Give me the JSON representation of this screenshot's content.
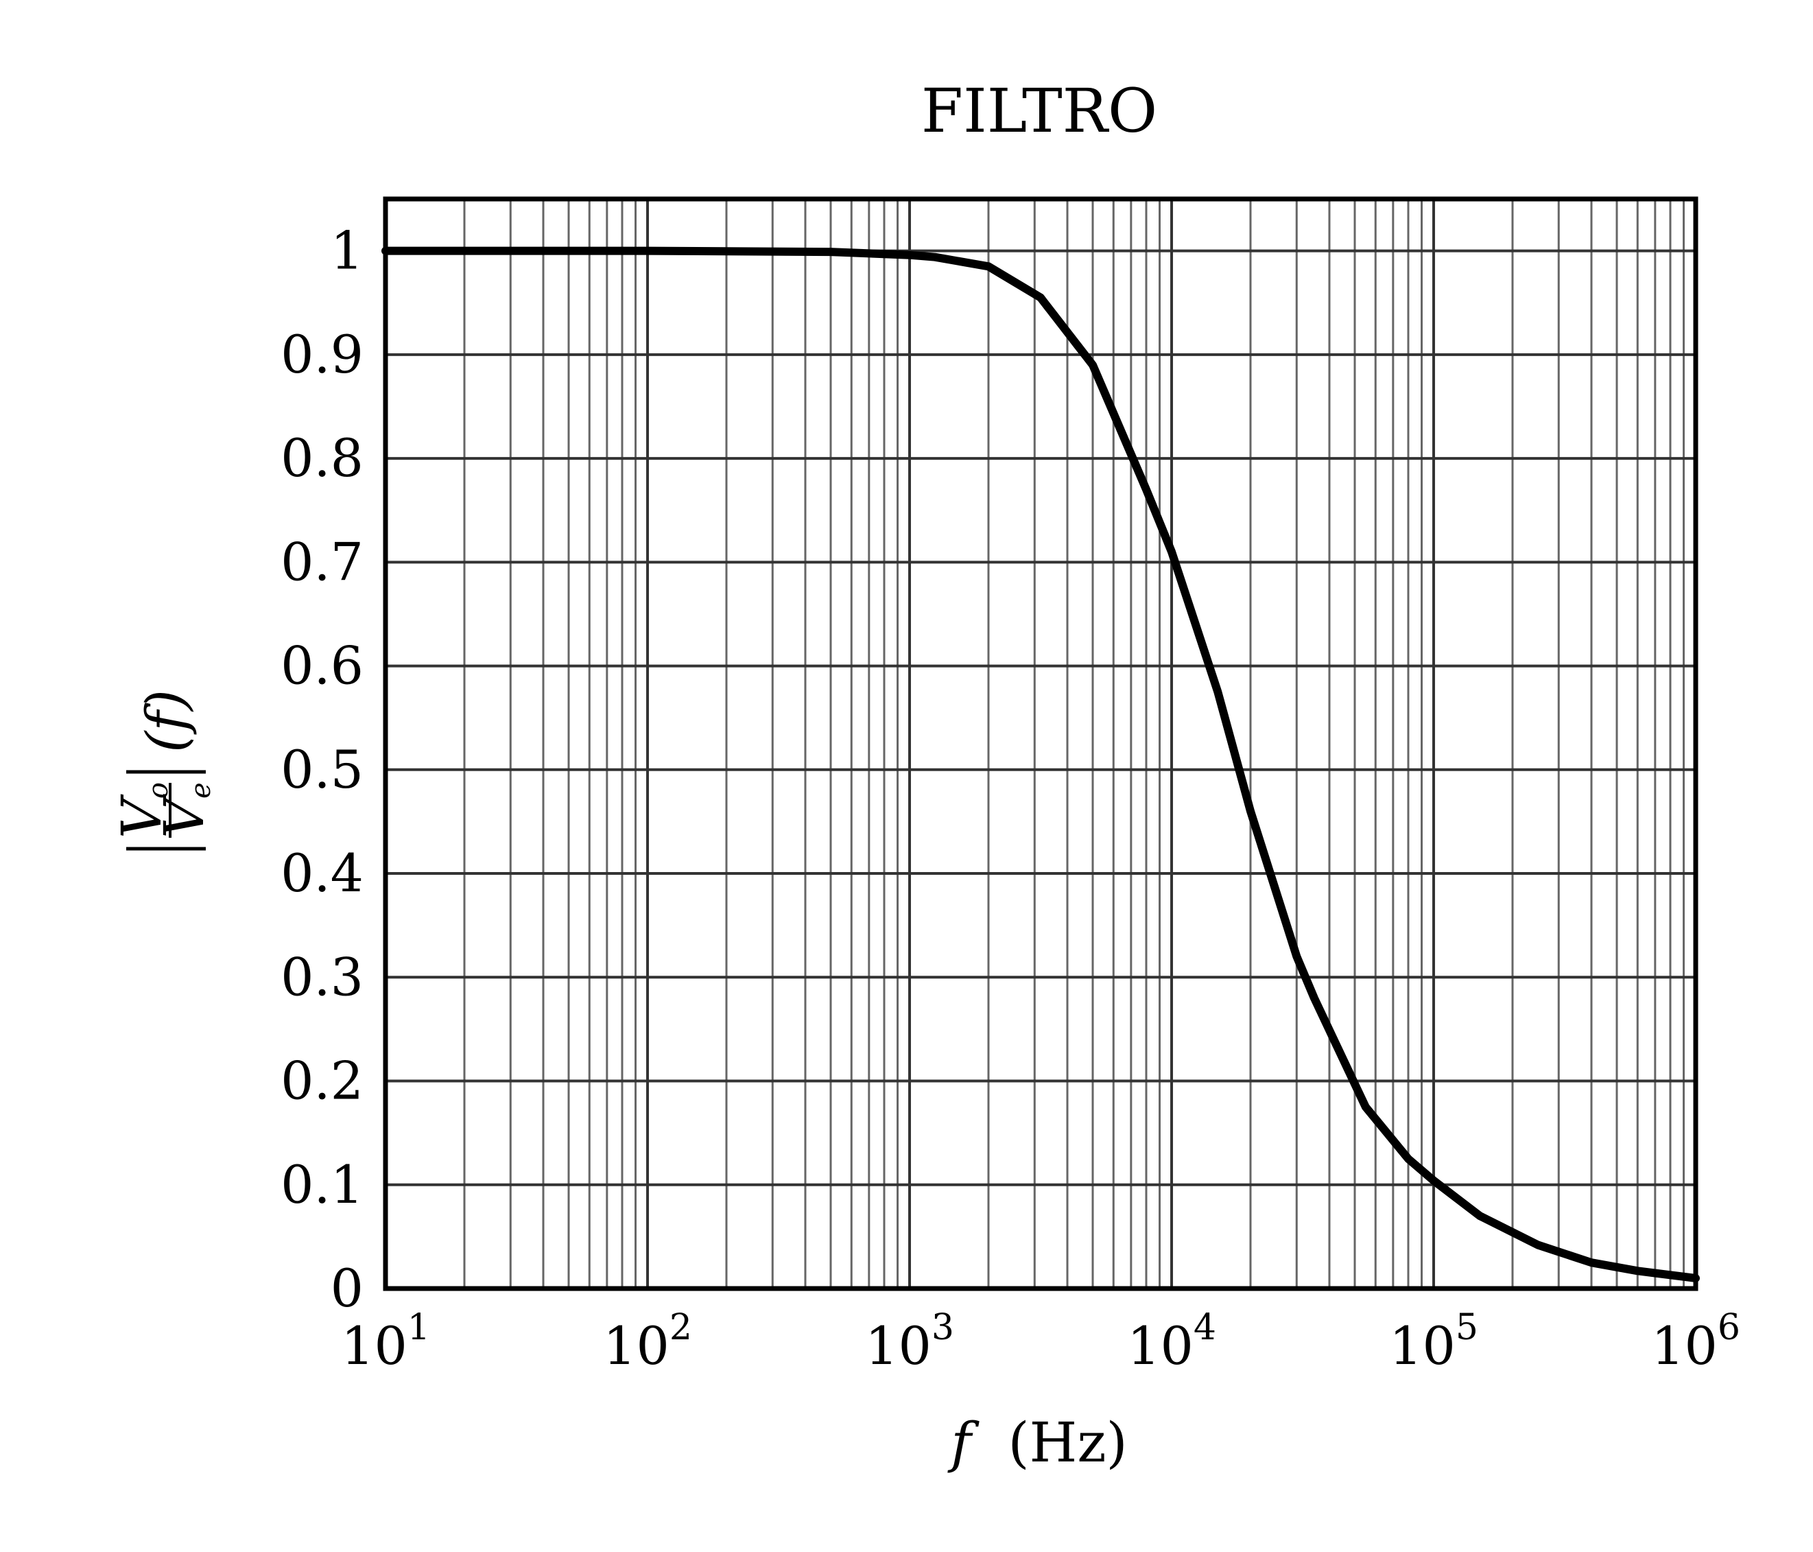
{
  "chart_data": {
    "type": "line",
    "title": "FILTRO",
    "xlabel": {
      "var": "f",
      "unit": "(Hz)"
    },
    "ylabel": {
      "num": "V",
      "num_sub": "o",
      "den": "V",
      "den_sub": "e",
      "arg": "(f)"
    },
    "xscale": "log",
    "xlim": [
      10,
      1000000
    ],
    "ylim": [
      0,
      1.05
    ],
    "grid": true,
    "x_ticks": [
      {
        "value": 10,
        "base": "10",
        "exp": "1"
      },
      {
        "value": 100,
        "base": "10",
        "exp": "2"
      },
      {
        "value": 1000,
        "base": "10",
        "exp": "3"
      },
      {
        "value": 10000,
        "base": "10",
        "exp": "4"
      },
      {
        "value": 100000,
        "base": "10",
        "exp": "5"
      },
      {
        "value": 1000000,
        "base": "10",
        "exp": "6"
      }
    ],
    "y_ticks": [
      {
        "value": 0,
        "label": "0"
      },
      {
        "value": 0.1,
        "label": "0.1"
      },
      {
        "value": 0.2,
        "label": "0.2"
      },
      {
        "value": 0.3,
        "label": "0.3"
      },
      {
        "value": 0.4,
        "label": "0.4"
      },
      {
        "value": 0.5,
        "label": "0.5"
      },
      {
        "value": 0.6,
        "label": "0.6"
      },
      {
        "value": 0.7,
        "label": "0.7"
      },
      {
        "value": 0.8,
        "label": "0.8"
      },
      {
        "value": 0.9,
        "label": "0.9"
      },
      {
        "value": 1,
        "label": "1"
      }
    ],
    "series": [
      {
        "color": "#000000",
        "x": [
          10,
          100,
          500,
          1000,
          1250,
          2000,
          3160,
          5000,
          8000,
          10000,
          15000,
          20000,
          30000,
          35000,
          55000,
          80000,
          100000,
          150000,
          250000,
          400000,
          600000,
          1000000
        ],
        "y": [
          1.0,
          1.0,
          0.999,
          0.996,
          0.994,
          0.985,
          0.955,
          0.89,
          0.77,
          0.71,
          0.575,
          0.46,
          0.32,
          0.28,
          0.175,
          0.125,
          0.104,
          0.07,
          0.042,
          0.025,
          0.017,
          0.01
        ]
      }
    ]
  }
}
